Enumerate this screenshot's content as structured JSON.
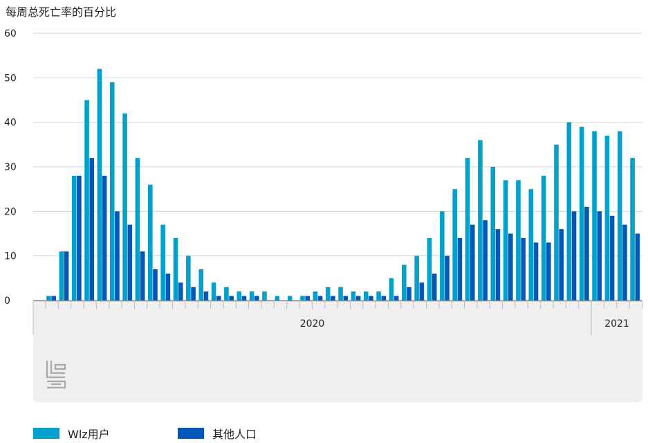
{
  "chart_data": {
    "type": "bar",
    "title": "每周总死亡率的百分比",
    "xlabel": "",
    "ylabel": "",
    "ylim": [
      0,
      60
    ],
    "yticks": [
      0,
      10,
      20,
      30,
      40,
      50,
      60
    ],
    "grid": true,
    "legend_position": "bottom-left",
    "year_labels": [
      "2020",
      "2021"
    ],
    "series": [
      {
        "name": "Wlz用户",
        "color": "#00a1cd",
        "values": [
          1,
          11,
          28,
          45,
          52,
          49,
          42,
          32,
          26,
          17,
          14,
          10,
          7,
          4,
          3,
          2,
          2,
          2,
          1,
          1,
          1,
          2,
          3,
          3,
          2,
          2,
          2,
          5,
          8,
          10,
          14,
          20,
          25,
          32,
          36,
          30,
          27,
          27,
          25,
          28,
          35,
          40,
          39,
          38,
          37,
          38,
          32
        ]
      },
      {
        "name": "其他人口",
        "color": "#0058b8",
        "values": [
          1,
          11,
          28,
          32,
          28,
          20,
          17,
          11,
          7,
          6,
          4,
          3,
          2,
          1,
          1,
          1,
          1,
          0,
          0,
          0,
          1,
          1,
          1,
          1,
          1,
          1,
          1,
          1,
          3,
          4,
          6,
          10,
          14,
          17,
          18,
          16,
          15,
          14,
          13,
          13,
          16,
          20,
          21,
          20,
          19,
          17,
          15
        ]
      }
    ]
  }
}
